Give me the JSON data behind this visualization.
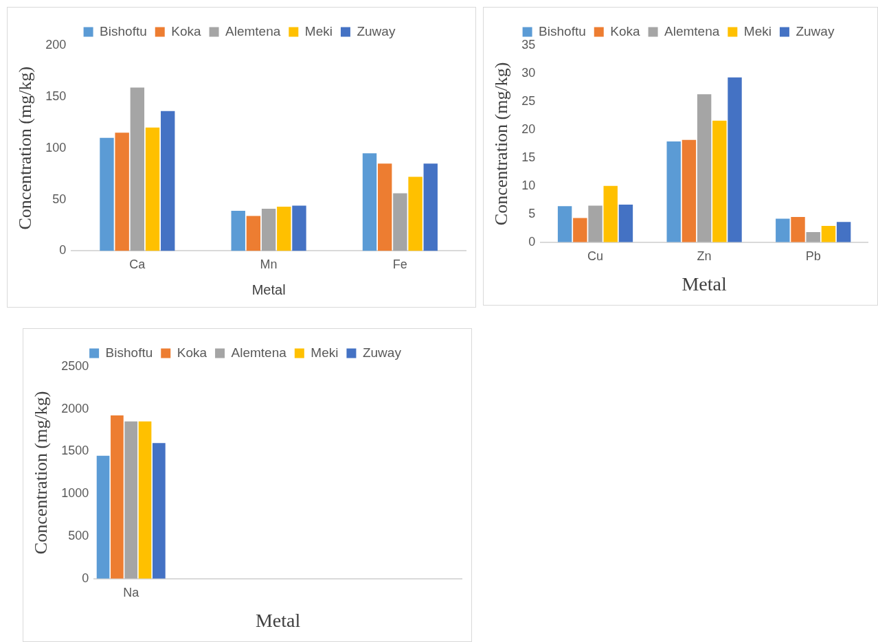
{
  "chart_data": [
    {
      "type": "bar",
      "xlabel": "Metal",
      "ylabel": "Concentration (mg/kg)",
      "categories": [
        "Ca",
        "Mn",
        "Fe"
      ],
      "ylim": [
        0,
        200
      ],
      "yticks": [
        0,
        50,
        100,
        150,
        200
      ],
      "grid": false,
      "legend": "top",
      "series": [
        {
          "name": "Bishoftu",
          "color": "#5b9bd5",
          "values": [
            110,
            39,
            95
          ]
        },
        {
          "name": "Koka",
          "color": "#ed7d31",
          "values": [
            115,
            34,
            85
          ]
        },
        {
          "name": "Alemtena",
          "color": "#a5a5a5",
          "values": [
            159,
            41,
            56
          ]
        },
        {
          "name": "Meki",
          "color": "#ffc000",
          "values": [
            120,
            43,
            72
          ]
        },
        {
          "name": "Zuway",
          "color": "#4472c4",
          "values": [
            136,
            44,
            85
          ]
        }
      ]
    },
    {
      "type": "bar",
      "xlabel": "Metal",
      "ylabel": "Concentration (mg/kg)",
      "categories": [
        "Cu",
        "Zn",
        "Pb"
      ],
      "ylim": [
        0,
        35
      ],
      "yticks": [
        0,
        5,
        10,
        15,
        20,
        25,
        30,
        35
      ],
      "grid": false,
      "legend": "top",
      "series": [
        {
          "name": "Bishoftu",
          "color": "#5b9bd5",
          "values": [
            6.4,
            17.9,
            4.2
          ]
        },
        {
          "name": "Koka",
          "color": "#ed7d31",
          "values": [
            4.3,
            18.2,
            4.5
          ]
        },
        {
          "name": "Alemtena",
          "color": "#a5a5a5",
          "values": [
            6.5,
            26.3,
            1.8
          ]
        },
        {
          "name": "Meki",
          "color": "#ffc000",
          "values": [
            10.0,
            21.6,
            2.9
          ]
        },
        {
          "name": "Zuway",
          "color": "#4472c4",
          "values": [
            6.7,
            29.3,
            3.6
          ]
        }
      ]
    },
    {
      "type": "bar",
      "xlabel": "Metal",
      "ylabel": "Concentration (mg/kg)",
      "categories": [
        "Na",
        null,
        null,
        null,
        null
      ],
      "ylim": [
        0,
        2500
      ],
      "yticks": [
        0,
        500,
        1000,
        1500,
        2000,
        2500
      ],
      "grid": false,
      "legend": "top",
      "series": [
        {
          "name": "Bishoftu",
          "color": "#5b9bd5",
          "values": [
            1450,
            null,
            null,
            null,
            null
          ]
        },
        {
          "name": "Koka",
          "color": "#ed7d31",
          "values": [
            1925,
            null,
            null,
            null,
            null
          ]
        },
        {
          "name": "Alemtena",
          "color": "#a5a5a5",
          "values": [
            1855,
            null,
            null,
            null,
            null
          ]
        },
        {
          "name": "Meki",
          "color": "#ffc000",
          "values": [
            1855,
            null,
            null,
            null,
            null
          ]
        },
        {
          "name": "Zuway",
          "color": "#4472c4",
          "values": [
            1600,
            null,
            null,
            null,
            null
          ]
        }
      ]
    }
  ]
}
